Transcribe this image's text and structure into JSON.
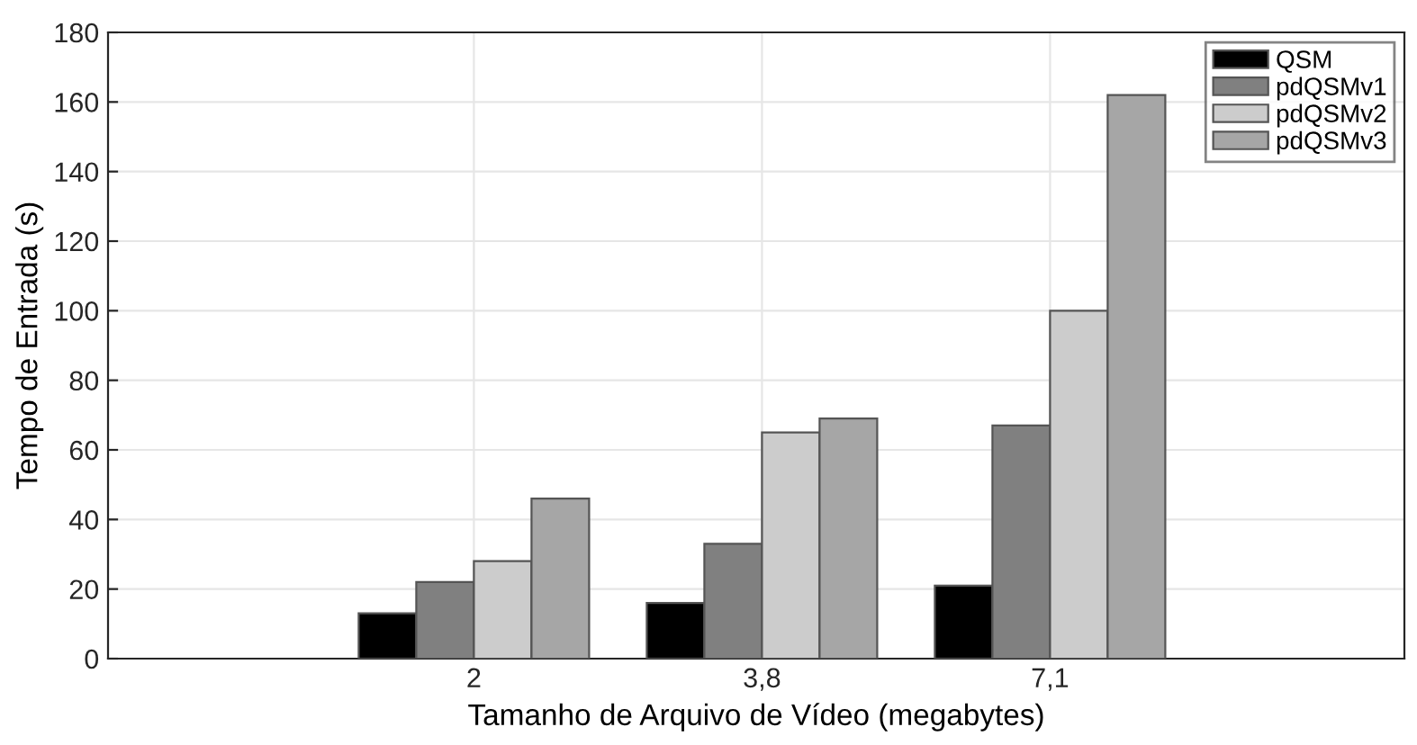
{
  "chart_data": {
    "type": "bar",
    "xlabel": "Tamanho de Arquivo de Vídeo (megabytes)",
    "ylabel": "Tempo de Entrada (s)",
    "categories": [
      "2",
      "3,8",
      "7,1"
    ],
    "series": [
      {
        "name": "QSM",
        "color": "#000000",
        "values": [
          13,
          16,
          21
        ]
      },
      {
        "name": "pdQSMv1",
        "color": "#808080",
        "values": [
          22,
          33,
          67
        ]
      },
      {
        "name": "pdQSMv2",
        "color": "#cccccc",
        "values": [
          28,
          65,
          100
        ]
      },
      {
        "name": "pdQSMv3",
        "color": "#a6a6a6",
        "values": [
          46,
          69,
          162
        ]
      }
    ],
    "ylim": [
      0,
      180
    ],
    "yticks": [
      0,
      20,
      40,
      60,
      80,
      100,
      120,
      140,
      160,
      180
    ],
    "grid": true,
    "legend": "top right"
  }
}
